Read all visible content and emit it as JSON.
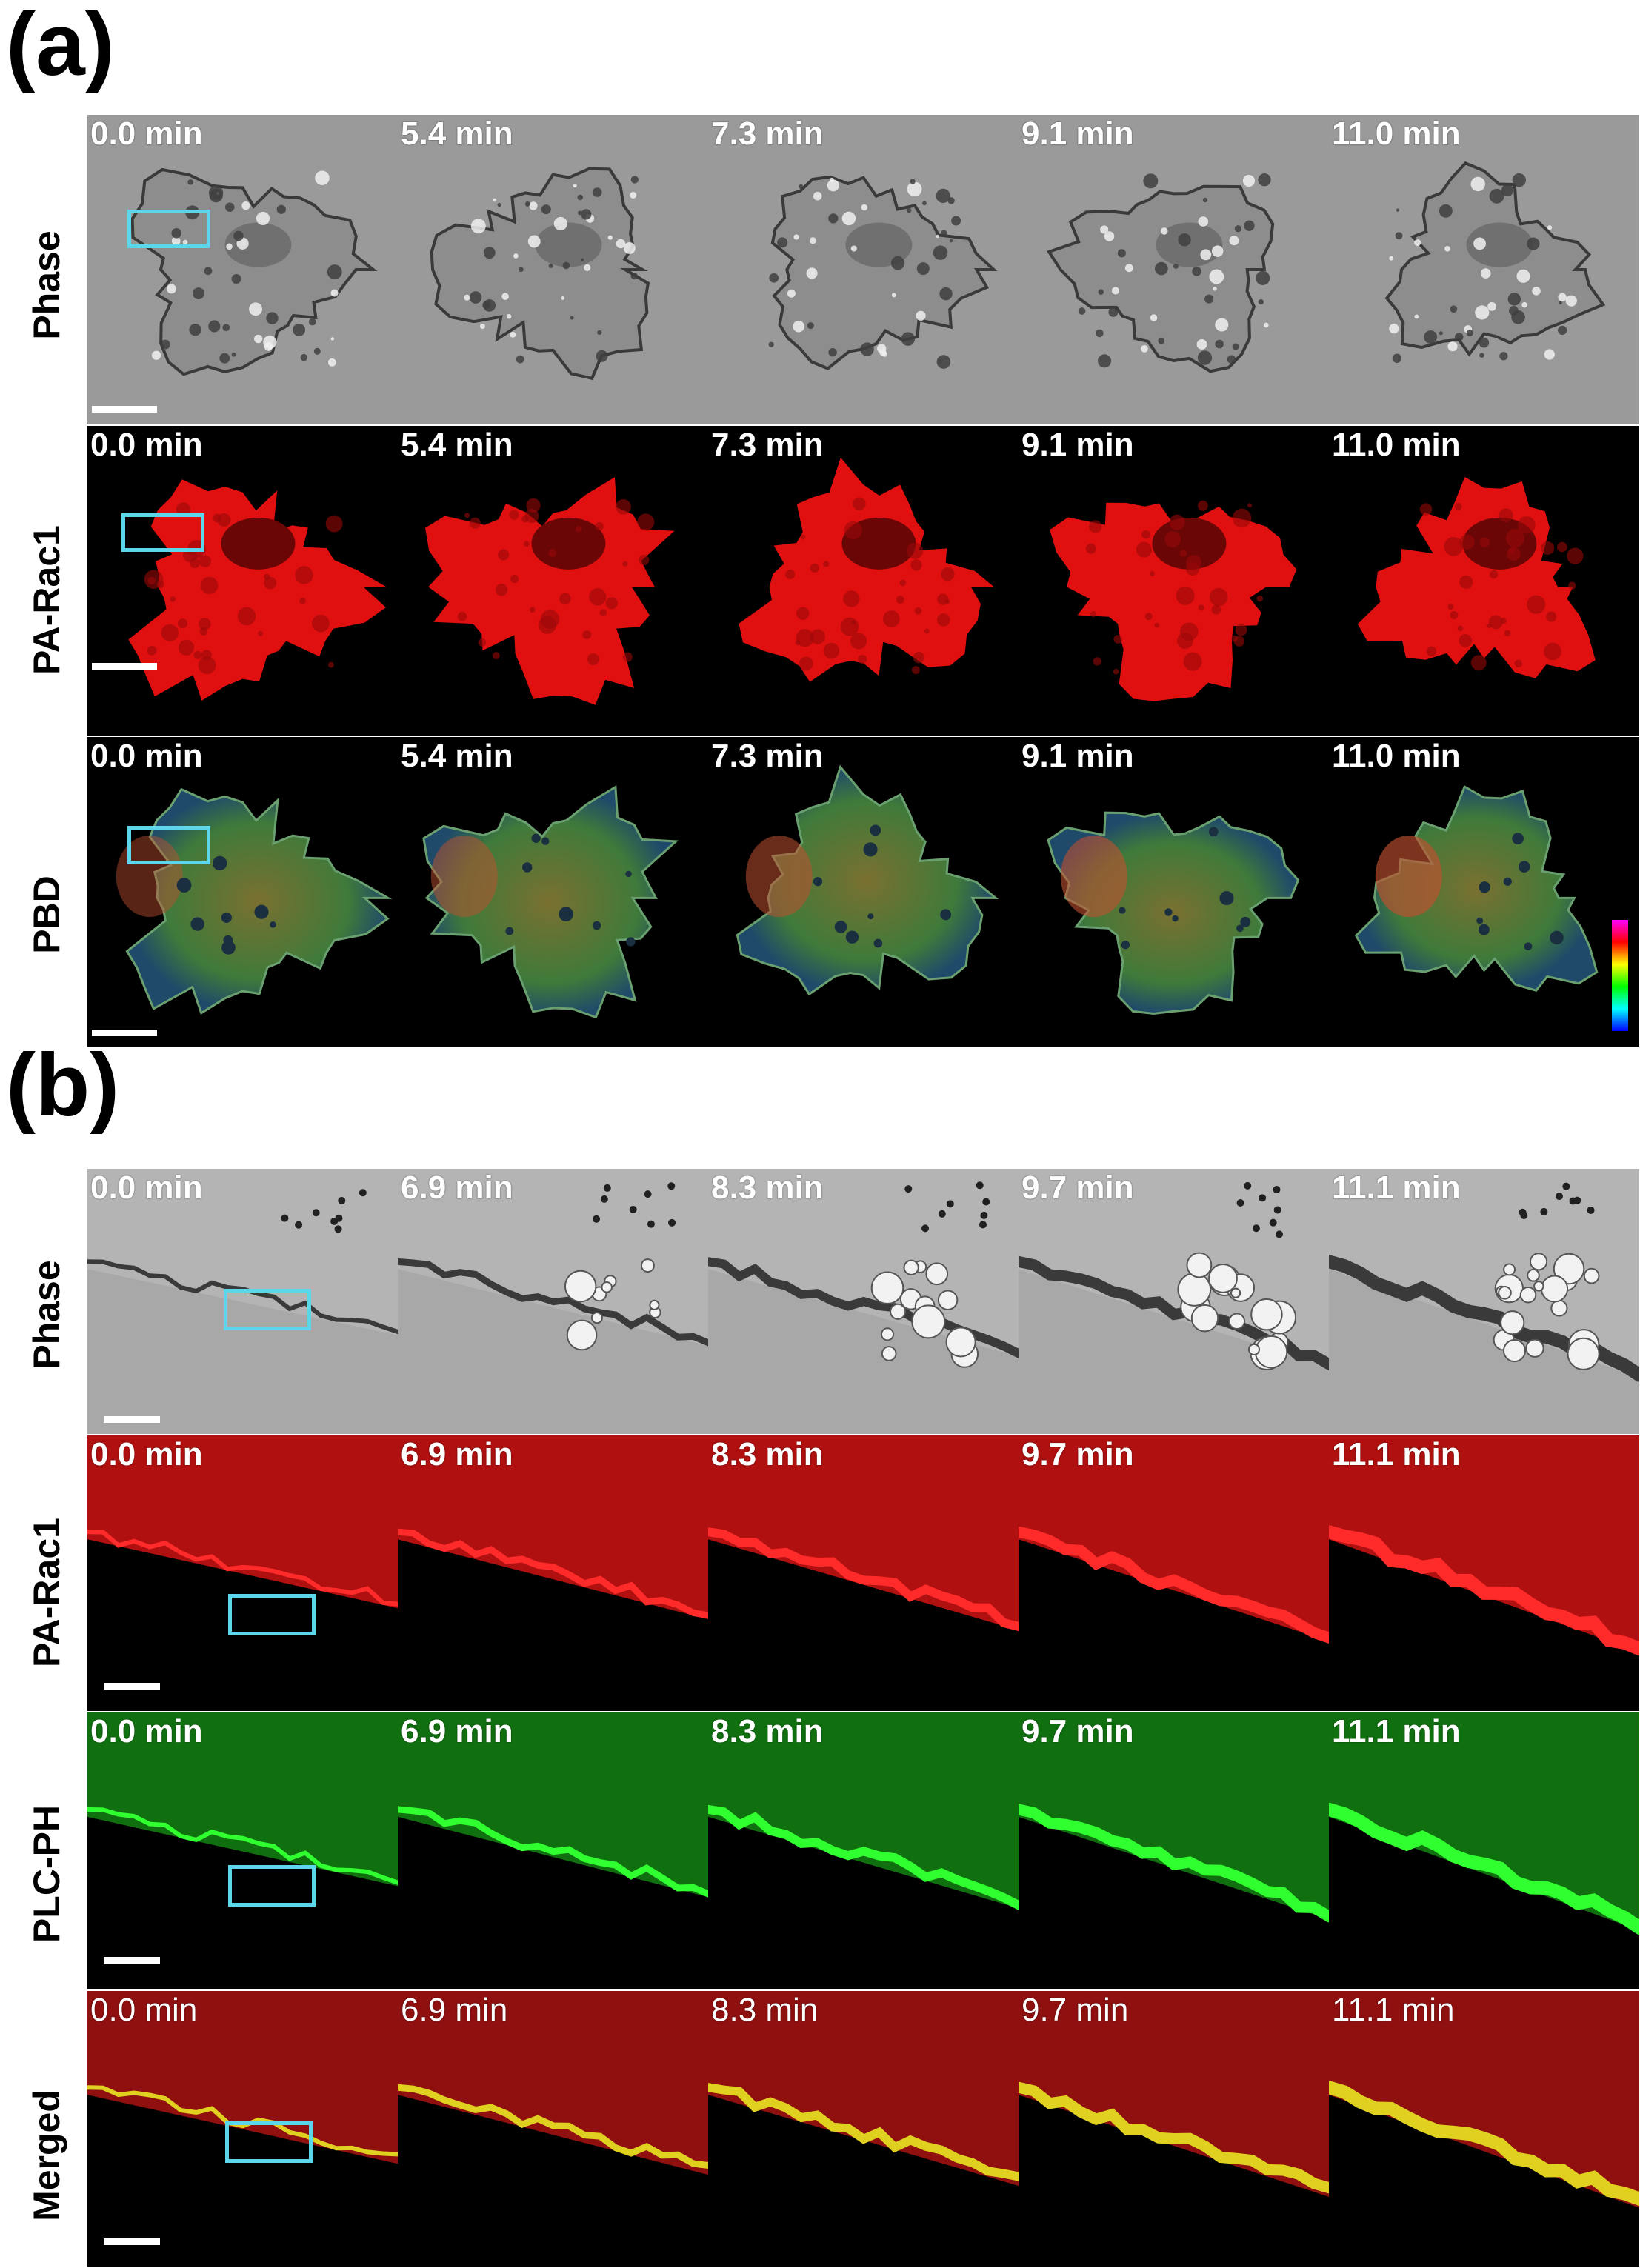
{
  "panel_a": {
    "letter": "(a)",
    "rows": [
      {
        "label": "Phase",
        "kind": "phase",
        "times": [
          "0.0 min",
          "5.4 min",
          "7.3 min",
          "9.1 min",
          "11.0 min"
        ]
      },
      {
        "label": "PA-Rac1",
        "kind": "red",
        "times": [
          "0.0 min",
          "5.4 min",
          "7.3 min",
          "9.1 min",
          "11.0 min"
        ]
      },
      {
        "label": "PBD",
        "kind": "pbd",
        "times": [
          "0.0 min",
          "5.4 min",
          "7.3 min",
          "9.1 min",
          "11.0 min"
        ]
      }
    ]
  },
  "panel_b": {
    "letter": "(b)",
    "rows": [
      {
        "label": "Phase",
        "kind": "phase2",
        "times": [
          "0.0 min",
          "6.9 min",
          "8.3 min",
          "9.7 min",
          "11.1 min"
        ]
      },
      {
        "label": "PA-Rac1",
        "kind": "red2",
        "times": [
          "0.0 min",
          "6.9 min",
          "8.3 min",
          "9.7 min",
          "11.1 min"
        ]
      },
      {
        "label": "PLC-PH",
        "kind": "green2",
        "times": [
          "0.0 min",
          "6.9 min",
          "8.3 min",
          "9.7 min",
          "11.1 min"
        ]
      },
      {
        "label": "Merged",
        "kind": "merged2",
        "times": [
          "0.0 min",
          "6.9 min",
          "8.3 min",
          "9.7 min",
          "11.1 min"
        ]
      }
    ]
  },
  "colors": {
    "roi_box": "#5bd6ea",
    "phase_bg": "#9a9a9a",
    "red_channel": "#e01010",
    "green_channel": "#18c018",
    "merged_yellow": "#e0d020",
    "colorbar": [
      "#ff00ff",
      "#ff0000",
      "#ffff00",
      "#00ff00",
      "#00ffff",
      "#0000ff"
    ]
  }
}
